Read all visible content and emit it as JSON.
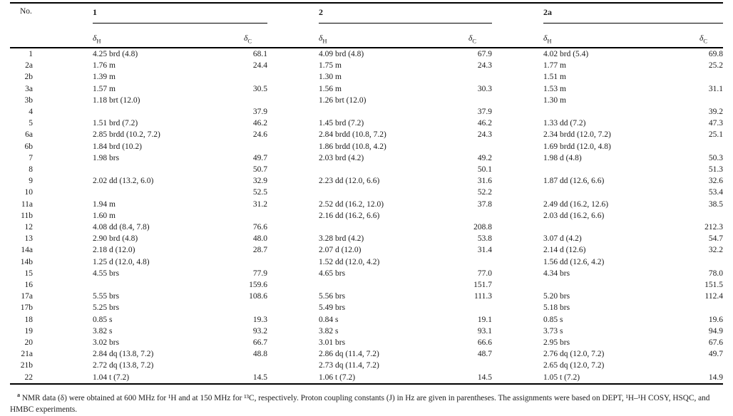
{
  "table": {
    "no_label": "No.",
    "groups": [
      {
        "label": "1"
      },
      {
        "label": "2"
      },
      {
        "label": "2a"
      }
    ],
    "sub_h": {
      "symbol": "δ",
      "sub": "H"
    },
    "sub_c": {
      "symbol": "δ",
      "sub": "C"
    },
    "rows": [
      {
        "no": "1",
        "g1h": "4.25 brd (4.8)",
        "g1c": "68.1",
        "g2h": "4.09 brd (4.8)",
        "g2c": "67.9",
        "g3h": "4.02 brd (5.4)",
        "g3c": "69.8"
      },
      {
        "no": "2a",
        "g1h": "1.76 m",
        "g1c": "24.4",
        "g2h": "1.75 m",
        "g2c": "24.3",
        "g3h": "1.77 m",
        "g3c": "25.2"
      },
      {
        "no": "2b",
        "g1h": "1.39 m",
        "g1c": "",
        "g2h": "1.30 m",
        "g2c": "",
        "g3h": "1.51 m",
        "g3c": ""
      },
      {
        "no": "3a",
        "g1h": "1.57 m",
        "g1c": "30.5",
        "g2h": "1.56 m",
        "g2c": "30.3",
        "g3h": "1.53 m",
        "g3c": "31.1"
      },
      {
        "no": "3b",
        "g1h": "1.18 brt (12.0)",
        "g1c": "",
        "g2h": "1.26 brt (12.0)",
        "g2c": "",
        "g3h": "1.30 m",
        "g3c": ""
      },
      {
        "no": "4",
        "g1h": "",
        "g1c": "37.9",
        "g2h": "",
        "g2c": "37.9",
        "g3h": "",
        "g3c": "39.2"
      },
      {
        "no": "5",
        "g1h": "1.51 brd (7.2)",
        "g1c": "46.2",
        "g2h": "1.45 brd (7.2)",
        "g2c": "46.2",
        "g3h": "1.33 dd (7.2)",
        "g3c": "47.3"
      },
      {
        "no": "6a",
        "g1h": "2.85 brdd (10.2, 7.2)",
        "g1c": "24.6",
        "g2h": "2.84 brdd (10.8, 7.2)",
        "g2c": "24.3",
        "g3h": "2.34 brdd (12.0, 7.2)",
        "g3c": "25.1"
      },
      {
        "no": "6b",
        "g1h": "1.84 brd (10.2)",
        "g1c": "",
        "g2h": "1.86 brdd (10.8, 4.2)",
        "g2c": "",
        "g3h": "1.69 brdd (12.0, 4.8)",
        "g3c": ""
      },
      {
        "no": "7",
        "g1h": "1.98 brs",
        "g1c": "49.7",
        "g2h": "2.03 brd (4.2)",
        "g2c": "49.2",
        "g3h": "1.98 d (4.8)",
        "g3c": "50.3"
      },
      {
        "no": "8",
        "g1h": "",
        "g1c": "50.7",
        "g2h": "",
        "g2c": "50.1",
        "g3h": "",
        "g3c": "51.3"
      },
      {
        "no": "9",
        "g1h": "2.02 dd (13.2, 6.0)",
        "g1c": "32.9",
        "g2h": "2.23 dd (12.0, 6.6)",
        "g2c": "31.6",
        "g3h": "1.87 dd (12.6, 6.6)",
        "g3c": "32.6"
      },
      {
        "no": "10",
        "g1h": "",
        "g1c": "52.5",
        "g2h": "",
        "g2c": "52.2",
        "g3h": "",
        "g3c": "53.4"
      },
      {
        "no": "11a",
        "g1h": "1.94 m",
        "g1c": "31.2",
        "g2h": "2.52 dd (16.2, 12.0)",
        "g2c": "37.8",
        "g3h": "2.49 dd (16.2, 12.6)",
        "g3c": "38.5"
      },
      {
        "no": "11b",
        "g1h": "1.60 m",
        "g1c": "",
        "g2h": "2.16 dd (16.2, 6.6)",
        "g2c": "",
        "g3h": "2.03 dd (16.2, 6.6)",
        "g3c": ""
      },
      {
        "no": "12",
        "g1h": "4.08 dd (8.4, 7.8)",
        "g1c": "76.6",
        "g2h": "",
        "g2c": "208.8",
        "g3h": "",
        "g3c": "212.3"
      },
      {
        "no": "13",
        "g1h": "2.90 brd (4.8)",
        "g1c": "48.0",
        "g2h": "3.28 brd (4.2)",
        "g2c": "53.8",
        "g3h": "3.07 d (4.2)",
        "g3c": "54.7"
      },
      {
        "no": "14a",
        "g1h": "2.18 d (12.0)",
        "g1c": "28.7",
        "g2h": "2.07 d (12.0)",
        "g2c": "31.4",
        "g3h": "2.14 d (12.6)",
        "g3c": "32.2"
      },
      {
        "no": "14b",
        "g1h": "1.25 d (12.0, 4.8)",
        "g1c": "",
        "g2h": "1.52 dd (12.0, 4.2)",
        "g2c": "",
        "g3h": "1.56 dd (12.6, 4.2)",
        "g3c": ""
      },
      {
        "no": "15",
        "g1h": "4.55 brs",
        "g1c": "77.9",
        "g2h": "4.65 brs",
        "g2c": "77.0",
        "g3h": "4.34 brs",
        "g3c": "78.0"
      },
      {
        "no": "16",
        "g1h": "",
        "g1c": "159.6",
        "g2h": "",
        "g2c": "151.7",
        "g3h": "",
        "g3c": "151.5"
      },
      {
        "no": "17a",
        "g1h": "5.55 brs",
        "g1c": "108.6",
        "g2h": "5.56 brs",
        "g2c": "111.3",
        "g3h": "5.20 brs",
        "g3c": "112.4"
      },
      {
        "no": "17b",
        "g1h": "5.25 brs",
        "g1c": "",
        "g2h": "5.49 brs",
        "g2c": "",
        "g3h": "5.18 brs",
        "g3c": ""
      },
      {
        "no": "18",
        "g1h": "0.85 s",
        "g1c": "19.3",
        "g2h": "0.84 s",
        "g2c": "19.1",
        "g3h": "0.85 s",
        "g3c": "19.6"
      },
      {
        "no": "19",
        "g1h": "3.82 s",
        "g1c": "93.2",
        "g2h": "3.82 s",
        "g2c": "93.1",
        "g3h": "3.73 s",
        "g3c": "94.9"
      },
      {
        "no": "20",
        "g1h": "3.02 brs",
        "g1c": "66.7",
        "g2h": "3.01 brs",
        "g2c": "66.6",
        "g3h": "2.95 brs",
        "g3c": "67.6"
      },
      {
        "no": "21a",
        "g1h": "2.84 dq (13.8, 7.2)",
        "g1c": "48.8",
        "g2h": "2.86 dq (11.4, 7.2)",
        "g2c": "48.7",
        "g3h": "2.76 dq (12.0, 7.2)",
        "g3c": "49.7"
      },
      {
        "no": "21b",
        "g1h": "2.72 dq (13.8, 7.2)",
        "g1c": "",
        "g2h": "2.73 dq (11.4, 7.2)",
        "g2c": "",
        "g3h": "2.65 dq (12.0, 7.2)",
        "g3c": ""
      },
      {
        "no": "22",
        "g1h": "1.04 t (7.2)",
        "g1c": "14.5",
        "g2h": "1.06 t (7.2)",
        "g2c": "14.5",
        "g3h": "1.05 t (7.2)",
        "g3c": "14.9"
      }
    ]
  },
  "footnote": {
    "marker": "a",
    "text": "NMR data (δ) were obtained at 600 MHz for ¹H and at 150 MHz for ¹³C, respectively. Proton coupling constants (J) in Hz are given in parentheses. The assignments were based on DEPT, ¹H–¹H COSY, HSQC, and HMBC experiments."
  }
}
